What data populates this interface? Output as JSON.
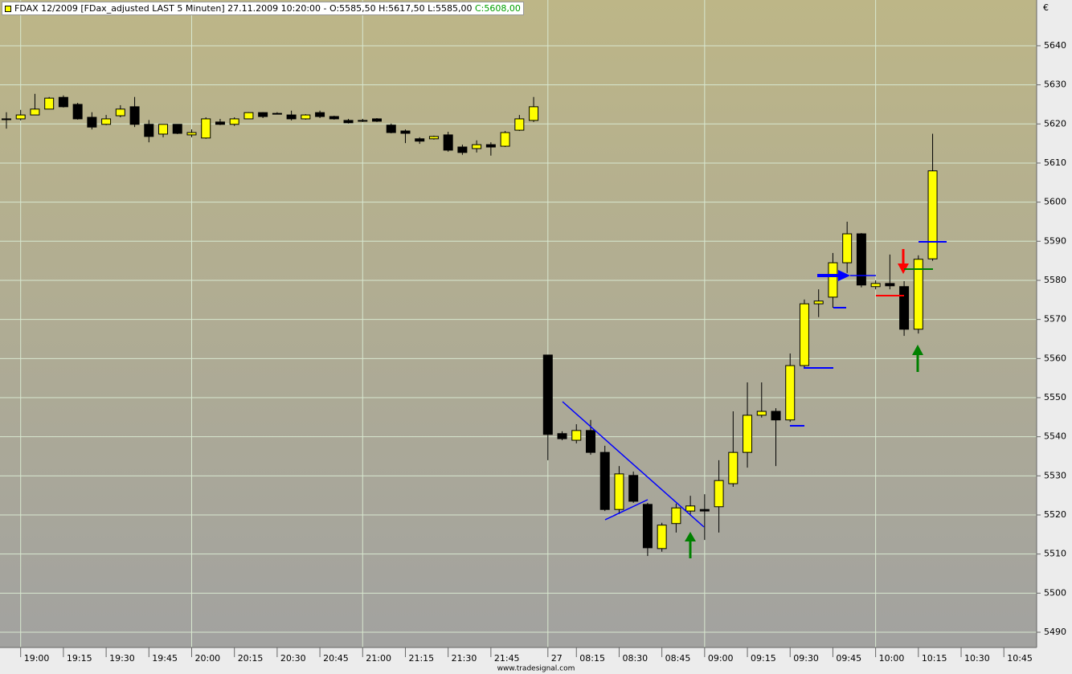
{
  "chart_data": {
    "type": "candlestick",
    "header": {
      "title": "FDAX 12/2009 [FDax_adjusted LAST 5 Minuten] 27.11.2009 10:20:00 - O:5585,50 H:5617,50 L:5585,00",
      "close_label": "C:5608,00"
    },
    "currency": "€",
    "footer": "www.tradesignal.com",
    "up_color": "#ffff00",
    "down_color": "#000000",
    "open": [
      5621.3,
      5621.3,
      5622.3,
      5623.8,
      5626.8,
      5625.0,
      5621.7,
      5619.9,
      5622.1,
      5624.4,
      5619.9,
      5617.4,
      5619.9,
      5617.2,
      5616.4,
      5620.5,
      5619.9,
      5621.3,
      5622.9,
      5622.7,
      5622.3,
      5621.3,
      5622.9,
      5621.9,
      5620.9,
      5620.9,
      5621.3,
      5619.7,
      5618.2,
      5616.2,
      5616.2,
      5617.2,
      5614.1,
      5613.7,
      5614.7,
      5614.3,
      5618.4,
      5620.9,
      5560.9,
      5540.8,
      5539.1,
      5541.6,
      5536.0,
      5521.4,
      5530.1,
      5522.7,
      5511.4,
      5517.8,
      5521.0,
      5521.4,
      5522.1,
      5528.0,
      5536.0,
      5545.5,
      5546.5,
      5544.3,
      5558.2,
      5574.0,
      5575.7,
      5584.5,
      5591.9,
      5578.4,
      5579.2,
      5578.4,
      5567.5,
      5585.5
    ],
    "high": [
      5623.0,
      5623.6,
      5627.7,
      5626.9,
      5627.3,
      5625.4,
      5623.0,
      5622.3,
      5624.8,
      5626.9,
      5621.0,
      5619.9,
      5619.9,
      5618.6,
      5621.7,
      5621.3,
      5621.7,
      5623.0,
      5623.0,
      5623.0,
      5623.4,
      5622.5,
      5623.4,
      5622.1,
      5621.3,
      5621.3,
      5621.5,
      5620.1,
      5618.6,
      5616.6,
      5617.0,
      5618.0,
      5614.7,
      5615.8,
      5615.3,
      5618.2,
      5622.3,
      5626.9,
      5560.9,
      5541.4,
      5543.2,
      5544.3,
      5537.7,
      5532.5,
      5531.1,
      5523.1,
      5518.0,
      5522.9,
      5524.9,
      5525.3,
      5534.0,
      5546.5,
      5553.9,
      5553.9,
      5547.3,
      5561.3,
      5575.1,
      5577.7,
      5587.0,
      5595.0,
      5592.1,
      5580.0,
      5586.6,
      5579.8,
      5586.4,
      5617.5
    ],
    "low": [
      5618.8,
      5620.9,
      5622.3,
      5623.8,
      5624.2,
      5621.1,
      5618.6,
      5619.7,
      5621.7,
      5619.2,
      5615.3,
      5616.6,
      5617.4,
      5616.6,
      5616.2,
      5619.7,
      5619.5,
      5621.3,
      5621.5,
      5622.5,
      5620.9,
      5621.1,
      5621.5,
      5621.1,
      5620.1,
      5620.5,
      5620.5,
      5617.6,
      5615.1,
      5614.9,
      5616.0,
      5612.9,
      5612.1,
      5612.7,
      5611.9,
      5614.1,
      5618.2,
      5620.5,
      5534.0,
      5539.1,
      5538.3,
      5535.4,
      5521.0,
      5520.2,
      5523.1,
      5509.5,
      5510.6,
      5515.5,
      5520.2,
      5513.6,
      5515.5,
      5527.2,
      5532.1,
      5544.9,
      5532.5,
      5543.8,
      5557.6,
      5570.6,
      5573.0,
      5581.9,
      5578.2,
      5577.7,
      5577.7,
      5565.8,
      5566.4,
      5585.0
    ],
    "close": [
      5621.3,
      5622.3,
      5623.8,
      5626.6,
      5624.4,
      5621.3,
      5619.2,
      5621.3,
      5623.8,
      5619.9,
      5616.8,
      5619.9,
      5617.6,
      5617.8,
      5621.3,
      5619.9,
      5621.3,
      5622.9,
      5621.9,
      5622.7,
      5621.3,
      5622.3,
      5621.9,
      5621.3,
      5620.3,
      5620.9,
      5620.7,
      5617.8,
      5617.6,
      5615.6,
      5616.8,
      5613.3,
      5612.7,
      5614.7,
      5614.1,
      5617.8,
      5621.3,
      5624.4,
      5540.6,
      5539.5,
      5541.6,
      5536.0,
      5521.4,
      5530.5,
      5523.5,
      5511.6,
      5517.4,
      5521.8,
      5522.3,
      5521.0,
      5528.8,
      5536.0,
      5545.5,
      5546.5,
      5544.3,
      5558.2,
      5574.0,
      5574.7,
      5584.5,
      5591.9,
      5578.8,
      5579.2,
      5578.6,
      5567.5,
      5585.4,
      5608.0
    ],
    "xlim": [
      -0.45,
      72.3
    ],
    "xticks": [
      {
        "value": 1,
        "label": "19:00"
      },
      {
        "value": 4,
        "label": "19:15"
      },
      {
        "value": 7,
        "label": "19:30"
      },
      {
        "value": 10,
        "label": "19:45"
      },
      {
        "value": 13,
        "label": "20:00"
      },
      {
        "value": 16,
        "label": "20:15"
      },
      {
        "value": 19,
        "label": "20:30"
      },
      {
        "value": 22,
        "label": "20:45"
      },
      {
        "value": 25,
        "label": "21:00"
      },
      {
        "value": 28,
        "label": "21:15"
      },
      {
        "value": 31,
        "label": "21:30"
      },
      {
        "value": 34,
        "label": "21:45"
      },
      {
        "value": 38,
        "label": "27"
      },
      {
        "value": 40,
        "label": "08:15"
      },
      {
        "value": 43,
        "label": "08:30"
      },
      {
        "value": 46,
        "label": "08:45"
      },
      {
        "value": 49,
        "label": "09:00"
      },
      {
        "value": 52,
        "label": "09:15"
      },
      {
        "value": 55,
        "label": "09:30"
      },
      {
        "value": 58,
        "label": "09:45"
      },
      {
        "value": 61,
        "label": "10:00"
      },
      {
        "value": 64,
        "label": "10:15"
      },
      {
        "value": 67,
        "label": "10:30"
      },
      {
        "value": 70,
        "label": "10:45"
      }
    ],
    "xgrid": [
      1,
      13,
      25,
      38,
      49,
      61
    ],
    "ylim": [
      5486.1,
      5651.7
    ],
    "yticks": [
      5490,
      5500,
      5510,
      5520,
      5530,
      5540,
      5550,
      5560,
      5570,
      5580,
      5590,
      5600,
      5610,
      5620,
      5630,
      5640
    ],
    "grid": true
  }
}
